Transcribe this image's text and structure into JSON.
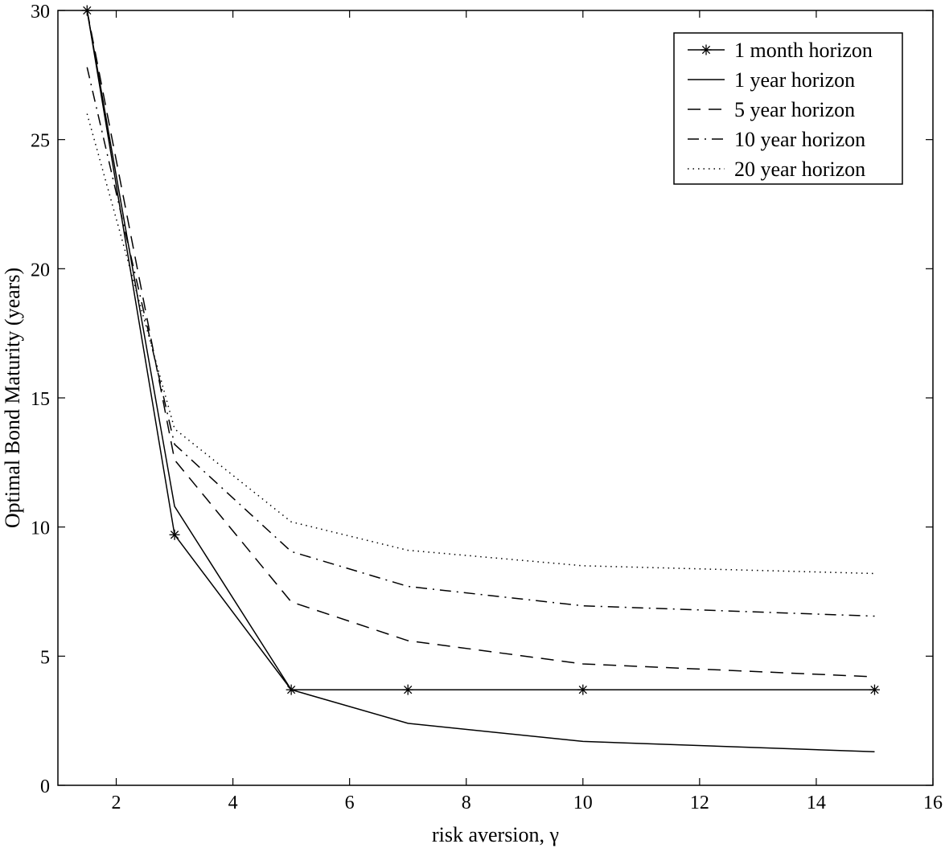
{
  "chart_data": {
    "type": "line",
    "title": "",
    "xlabel": "risk aversion, γ",
    "ylabel": "Optimal Bond Maturity (years)",
    "xlim": [
      1,
      16
    ],
    "ylim": [
      0,
      30
    ],
    "xticks": [
      2,
      4,
      6,
      8,
      10,
      12,
      14,
      16
    ],
    "yticks": [
      0,
      5,
      10,
      15,
      20,
      25,
      30
    ],
    "grid": false,
    "legend_position": "top-right",
    "x": [
      1.5,
      3,
      5,
      7,
      10,
      15
    ],
    "series": [
      {
        "name": "1 month horizon",
        "style": "solid-star",
        "values": [
          30,
          9.7,
          3.7,
          3.7,
          3.7,
          3.7
        ]
      },
      {
        "name": "1 year horizon",
        "style": "solid",
        "values": [
          30,
          10.8,
          3.7,
          2.4,
          1.7,
          1.3
        ]
      },
      {
        "name": "5 year horizon",
        "style": "dashed",
        "values": [
          30,
          12.6,
          7.1,
          5.6,
          4.7,
          4.2
        ]
      },
      {
        "name": "10 year horizon",
        "style": "dashdot",
        "values": [
          27.8,
          13.2,
          9.05,
          7.7,
          6.95,
          6.55
        ]
      },
      {
        "name": "20 year horizon",
        "style": "dotted",
        "values": [
          26,
          13.8,
          10.2,
          9.1,
          8.5,
          8.2
        ]
      }
    ],
    "colors": {
      "line": "#000000",
      "background": "#ffffff"
    }
  }
}
